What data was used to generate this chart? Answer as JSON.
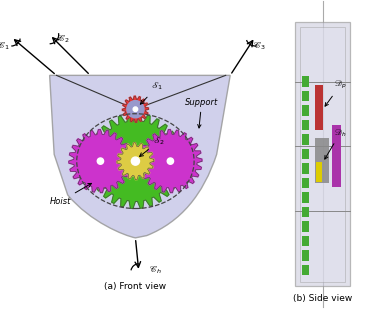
{
  "fig_width": 3.71,
  "fig_height": 3.15,
  "bg_color": "#ffffff",
  "platform_body_color": "#c8c8e8",
  "platform_body_alpha": 0.85,
  "platform_border_color": "#999999",
  "gear_large_green_color": "#44bb22",
  "gear_magenta_color": "#cc33cc",
  "gear_yellow_center_color": "#ddcc44",
  "gear_small_top_outer_color": "#ee3333",
  "gear_small_top_inner_color": "#9999cc",
  "dashed_circle_color": "#444444",
  "cable_color": "#222222",
  "caption_a": "(a) Front view",
  "caption_b": "(b) Side view",
  "side_bg_color": "#d0d0e0",
  "side_border_color": "#999999",
  "side_inner_color": "#e0e0ee",
  "side_red_color": "#bb3333",
  "side_green_color": "#44aa33",
  "side_gray_color": "#888888",
  "side_yellow_color": "#ddcc00",
  "side_purple_color": "#aa33aa"
}
